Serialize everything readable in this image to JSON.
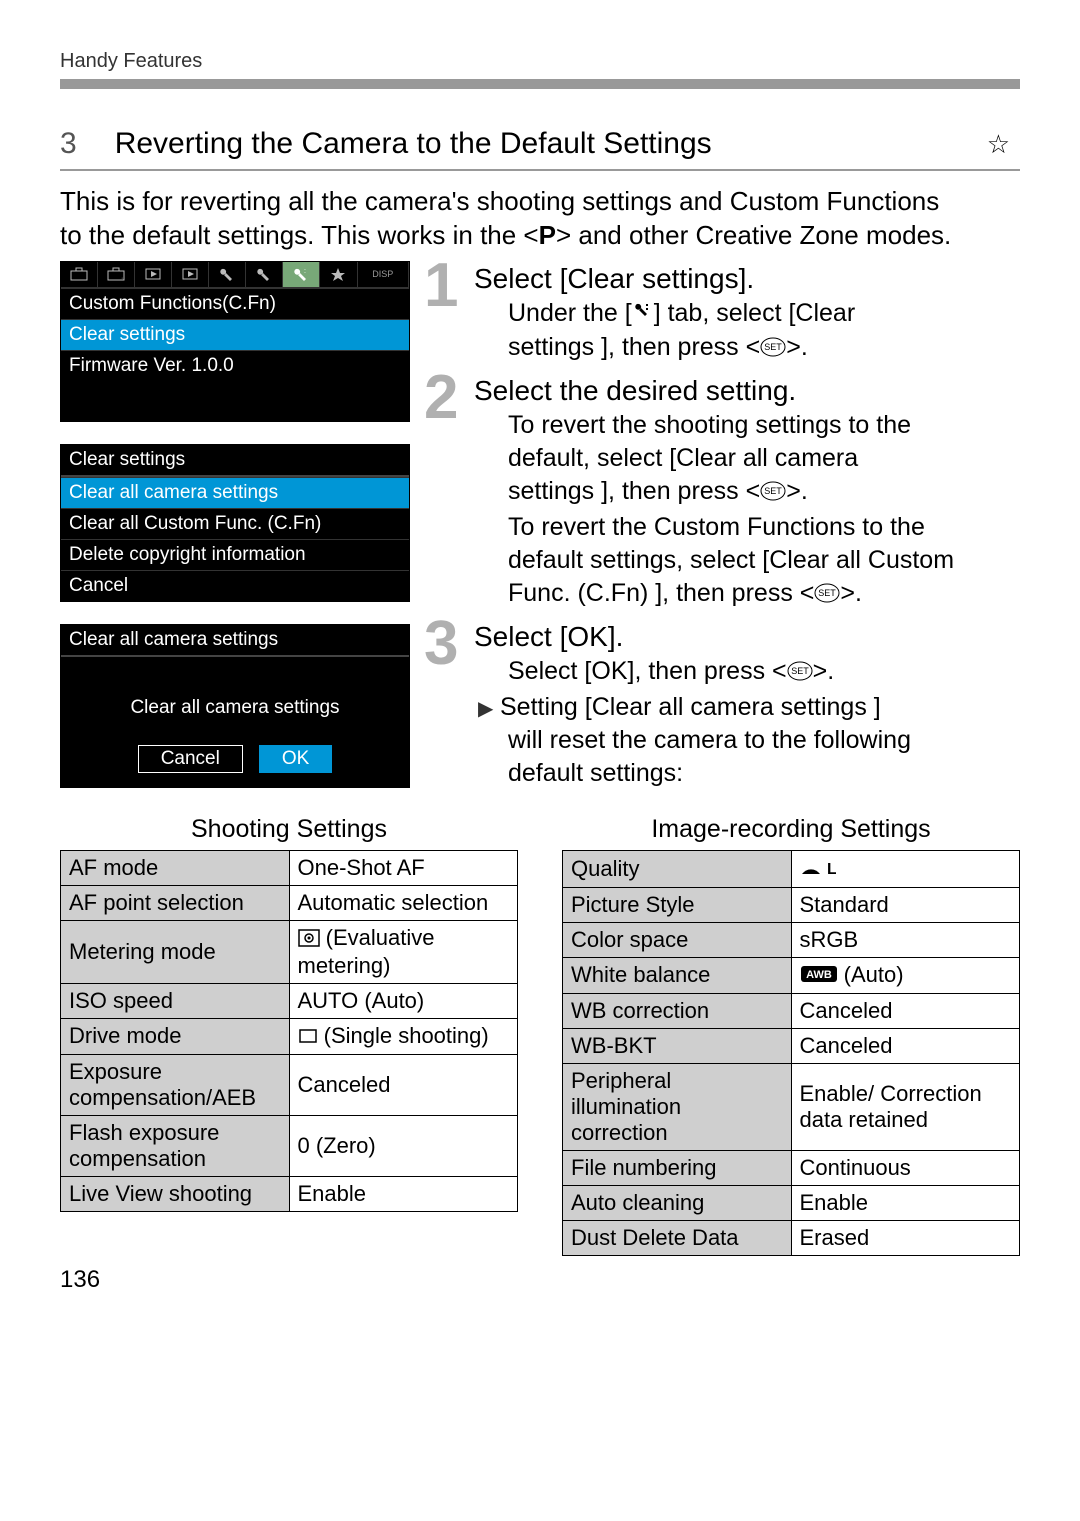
{
  "running_head": "Handy Features",
  "page_number": "136",
  "section": {
    "number": "3",
    "title": "Reverting the Camera to the Default Settings",
    "star": "☆"
  },
  "intro": {
    "line1": "This is for reverting all the camera's shooting settings and Custom Functions",
    "line2_a": "to the default settings. This works in the <",
    "line2_b": "> and other Creative Zone modes.",
    "p_glyph": "P"
  },
  "screens": {
    "screen1": {
      "rows": [
        "Custom Functions(C.Fn)",
        "Clear settings",
        "Firmware Ver. 1.0.0"
      ],
      "highlight_index": 1
    },
    "screen2": {
      "title": "Clear settings",
      "rows": [
        "Clear all camera settings",
        "Clear all Custom Func. (C.Fn)",
        "Delete copyright information",
        "Cancel"
      ],
      "highlight_index": 0
    },
    "screen3": {
      "title": "Clear all camera settings",
      "body": "Clear all camera settings",
      "buttons": [
        "Cancel",
        "OK"
      ],
      "highlight_index": 1
    }
  },
  "steps": {
    "s1": {
      "num": "1",
      "head": "Select [Clear settings].",
      "b1a": "Under the [",
      "b1b": "] tab, select [Clear",
      "b2a": "settings  ], then press <",
      "b2b": ">."
    },
    "s2": {
      "num": "2",
      "head": "Select the desired setting.",
      "b1": "To revert the shooting settings to the",
      "b2": "default, select [Clear all camera",
      "b3a": "settings  ], then press <",
      "b3b": ">.",
      "b4": "To revert the Custom Functions to the",
      "b5": "default settings, select [Clear all Custom",
      "b6a": "Func. (C.Fn) ], then press <",
      "b6b": ">."
    },
    "s3": {
      "num": "3",
      "head": "Select [OK].",
      "b1a": "Select [OK], then press <",
      "b1b": ">.",
      "b2": "Setting [Clear all camera settings   ]",
      "b3": "will reset the camera to the following",
      "b4": "default settings:"
    }
  },
  "tables": {
    "left": {
      "title": "Shooting Settings",
      "rows": [
        [
          "AF mode",
          "One-Shot AF"
        ],
        [
          "AF point selection",
          "Automatic selection"
        ],
        [
          "Metering mode",
          "__EVAL__"
        ],
        [
          "ISO speed",
          "AUTO (Auto)"
        ],
        [
          "Drive mode",
          "__SINGLE__"
        ],
        [
          "Exposure compensation/AEB",
          "Canceled"
        ],
        [
          "Flash exposure compensation",
          "0 (Zero)"
        ],
        [
          "Live View shooting",
          "Enable"
        ]
      ]
    },
    "right": {
      "title": "Image-recording Settings",
      "rows": [
        [
          "Quality",
          "__FINE_L__"
        ],
        [
          "Picture Style",
          "Standard"
        ],
        [
          "Color space",
          "sRGB"
        ],
        [
          "White balance",
          "__AWB__"
        ],
        [
          "WB correction",
          "Canceled"
        ],
        [
          "WB-BKT",
          "Canceled"
        ],
        [
          "Peripheral illumination correction",
          "Enable/ Correction data retained"
        ],
        [
          "File numbering",
          "Continuous"
        ],
        [
          "Auto cleaning",
          "Enable"
        ],
        [
          "Dust Delete Data",
          "Erased"
        ]
      ]
    }
  }
}
